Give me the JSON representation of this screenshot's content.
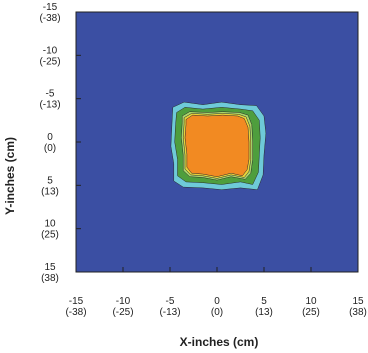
{
  "chart_data": {
    "type": "heatmap",
    "xlabel": "X-inches (cm)",
    "ylabel": "Y-inches (cm)",
    "xlim": [
      -15,
      15
    ],
    "ylim": [
      -15,
      15
    ],
    "y_inverted": true,
    "grid": false,
    "x_ticks": [
      {
        "value": -15,
        "label": "-15",
        "sublabel": "(-38)"
      },
      {
        "value": -10,
        "label": "-10",
        "sublabel": "(-25)"
      },
      {
        "value": -5,
        "label": "-5",
        "sublabel": "(-13)"
      },
      {
        "value": 0,
        "label": "0",
        "sublabel": "(0)"
      },
      {
        "value": 5,
        "label": "5",
        "sublabel": "(13)"
      },
      {
        "value": 10,
        "label": "10",
        "sublabel": "(25)"
      },
      {
        "value": 15,
        "label": "15",
        "sublabel": "(38)"
      }
    ],
    "y_ticks": [
      {
        "value": -15,
        "label": "-15",
        "sublabel": "(-38)"
      },
      {
        "value": -10,
        "label": "-10",
        "sublabel": "(-25)"
      },
      {
        "value": -5,
        "label": "-5",
        "sublabel": "(-13)"
      },
      {
        "value": 0,
        "label": "0",
        "sublabel": "(0)"
      },
      {
        "value": 5,
        "label": "5",
        "sublabel": "(13)"
      },
      {
        "value": 10,
        "label": "10",
        "sublabel": "(25)"
      },
      {
        "value": 15,
        "label": "15",
        "sublabel": "(38)"
      }
    ],
    "background_color": "#3b4fa3",
    "contours": [
      {
        "level": 1,
        "color": "#6ecad8",
        "points": [
          [
            -4.7,
            -4.0
          ],
          [
            -3.5,
            -4.6
          ],
          [
            -1.5,
            -4.3
          ],
          [
            0.5,
            -4.6
          ],
          [
            2.5,
            -4.3
          ],
          [
            4.2,
            -4.2
          ],
          [
            5.0,
            -3.0
          ],
          [
            5.2,
            -1.0
          ],
          [
            5.0,
            1.5
          ],
          [
            4.9,
            3.8
          ],
          [
            4.3,
            5.5
          ],
          [
            2.5,
            5.3
          ],
          [
            0.5,
            5.5
          ],
          [
            -1.5,
            5.3
          ],
          [
            -3.6,
            5.2
          ],
          [
            -4.6,
            4.5
          ],
          [
            -4.6,
            2.5
          ],
          [
            -4.9,
            0.5
          ],
          [
            -4.8,
            -2.0
          ]
        ]
      },
      {
        "level": 2,
        "color": "#4e9e3d",
        "points": [
          [
            -4.3,
            -3.4
          ],
          [
            -3.4,
            -4.0
          ],
          [
            -1.5,
            -3.8
          ],
          [
            0.5,
            -4.0
          ],
          [
            2.5,
            -3.8
          ],
          [
            3.8,
            -3.6
          ],
          [
            4.5,
            -2.5
          ],
          [
            4.6,
            -0.5
          ],
          [
            4.5,
            1.5
          ],
          [
            4.4,
            3.5
          ],
          [
            3.8,
            4.9
          ],
          [
            2.5,
            4.6
          ],
          [
            0.5,
            4.9
          ],
          [
            -1.5,
            4.7
          ],
          [
            -3.3,
            4.6
          ],
          [
            -4.2,
            3.9
          ],
          [
            -4.2,
            2.0
          ],
          [
            -4.5,
            0.0
          ],
          [
            -4.4,
            -2.0
          ]
        ]
      },
      {
        "level": 3,
        "color": "#a9d66a",
        "points": [
          [
            -3.7,
            -3.0
          ],
          [
            -2.9,
            -3.5
          ],
          [
            -1.0,
            -3.4
          ],
          [
            0.6,
            -3.5
          ],
          [
            2.4,
            -3.4
          ],
          [
            3.3,
            -3.1
          ],
          [
            3.7,
            -2.0
          ],
          [
            3.8,
            0.0
          ],
          [
            3.8,
            2.0
          ],
          [
            3.6,
            3.6
          ],
          [
            3.0,
            4.3
          ],
          [
            1.5,
            4.0
          ],
          [
            0.0,
            4.4
          ],
          [
            -1.5,
            4.1
          ],
          [
            -2.9,
            4.0
          ],
          [
            -3.6,
            3.3
          ],
          [
            -3.6,
            1.5
          ],
          [
            -3.8,
            -0.5
          ],
          [
            -3.7,
            -2.2
          ]
        ]
      },
      {
        "level": 4,
        "color": "#e8d23a",
        "points": [
          [
            -3.5,
            -2.8
          ],
          [
            -2.7,
            -3.3
          ],
          [
            -1.0,
            -3.2
          ],
          [
            0.6,
            -3.3
          ],
          [
            2.3,
            -3.2
          ],
          [
            3.1,
            -2.9
          ],
          [
            3.5,
            -1.8
          ],
          [
            3.6,
            0.0
          ],
          [
            3.6,
            2.0
          ],
          [
            3.4,
            3.4
          ],
          [
            2.9,
            4.1
          ],
          [
            1.5,
            3.8
          ],
          [
            0.0,
            4.2
          ],
          [
            -1.5,
            3.9
          ],
          [
            -2.8,
            3.8
          ],
          [
            -3.4,
            3.1
          ],
          [
            -3.4,
            1.5
          ],
          [
            -3.6,
            -0.5
          ],
          [
            -3.5,
            -2.1
          ]
        ]
      },
      {
        "level": 5,
        "color": "#f28a22",
        "points": [
          [
            -3.3,
            -2.6
          ],
          [
            -2.6,
            -3.1
          ],
          [
            -1.0,
            -3.0
          ],
          [
            0.6,
            -3.1
          ],
          [
            2.2,
            -3.0
          ],
          [
            2.9,
            -2.7
          ],
          [
            3.3,
            -1.7
          ],
          [
            3.4,
            0.0
          ],
          [
            3.4,
            2.0
          ],
          [
            3.2,
            3.2
          ],
          [
            2.7,
            3.9
          ],
          [
            1.5,
            3.6
          ],
          [
            0.0,
            4.0
          ],
          [
            -1.5,
            3.7
          ],
          [
            -2.7,
            3.6
          ],
          [
            -3.2,
            2.9
          ],
          [
            -3.2,
            1.4
          ],
          [
            -3.4,
            -0.5
          ],
          [
            -3.3,
            -2.0
          ]
        ]
      }
    ]
  }
}
